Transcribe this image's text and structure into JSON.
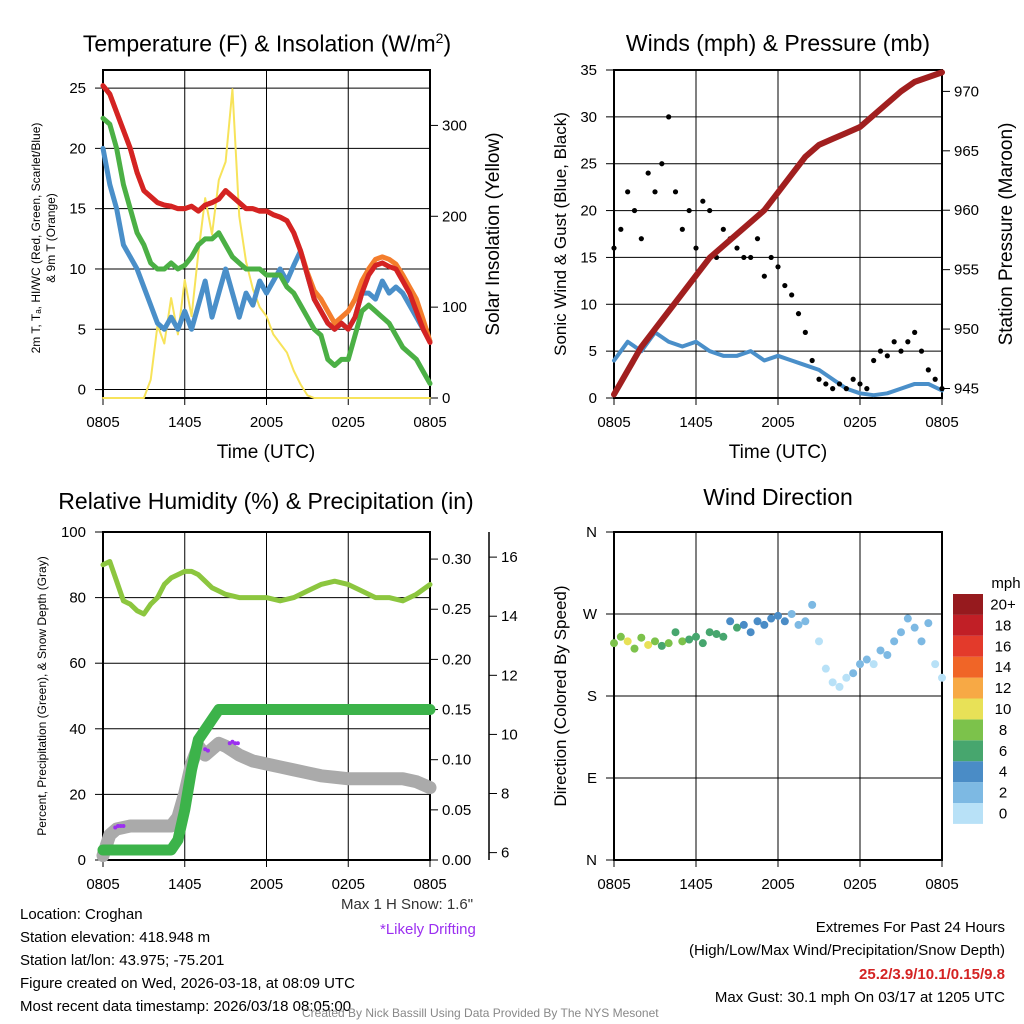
{
  "x_tick_labels": [
    "0805",
    "1405",
    "2005",
    "0205",
    "0805"
  ],
  "colors": {
    "temp": "#d42323",
    "temp9m": "#f47d2c",
    "dewpoint": "#4bb045",
    "windchill": "#4a8fc9",
    "solar": "#f7e35a",
    "pressure": "#a11f1f",
    "gust": "#000000",
    "wind": "#4a8fc9",
    "rh": "#8cc63f",
    "precip": "#3cb34a",
    "snow": "#aaaaaa",
    "drift": "#9b2ff0",
    "extremes": "#d42323",
    "credit": "#888888"
  },
  "chart_data": [
    {
      "type": "line",
      "title_main": "Temperature (F) & Insolation (W/m",
      "title_sup": "2",
      "title_end": ")",
      "xlabel": "Time (UTC)",
      "ylabel_line1": "2m T, Tₐ, HI/WC (Red, Green, Scarlet/Blue)",
      "ylabel_line2": "& 9m T (Orange)",
      "ylabel_right": "Solar Insolation (Yellow)",
      "ylim": [
        -0.7,
        26.5
      ],
      "ylim_right": [
        0,
        361
      ],
      "yticks": [
        "0",
        "5",
        "10",
        "15",
        "20",
        "25"
      ],
      "yticks_right": [
        "0",
        "100",
        "200",
        "300"
      ],
      "x_hours": [
        0,
        0.5,
        1,
        1.5,
        2,
        2.5,
        3,
        3.5,
        4,
        4.5,
        5,
        5.5,
        6,
        6.5,
        7,
        7.5,
        8,
        8.5,
        9,
        9.5,
        10,
        10.5,
        11,
        11.5,
        12,
        12.5,
        13,
        13.5,
        14,
        14.5,
        15,
        15.5,
        16,
        16.5,
        17,
        17.5,
        18,
        18.5,
        19,
        19.5,
        20,
        20.5,
        21,
        21.5,
        22,
        22.5,
        23,
        23.5,
        24
      ],
      "series": [
        {
          "name": "9m T",
          "color_key": "temp9m",
          "values": [
            25.2,
            24.5,
            23,
            21.5,
            20,
            18,
            16.5,
            16,
            15.5,
            15.3,
            15.2,
            15,
            15,
            15.2,
            14.8,
            15.3,
            15.5,
            15.8,
            16.5,
            16,
            15.5,
            15,
            15,
            14.8,
            14.8,
            14.5,
            14.3,
            14,
            13,
            11.5,
            9.7,
            8.2,
            7.5,
            6.5,
            5.5,
            6,
            6.5,
            7.5,
            9,
            10,
            10.8,
            11,
            10.8,
            10.4,
            9.5,
            8.5,
            7.5,
            5.8,
            4
          ]
        },
        {
          "name": "2m T",
          "color_key": "temp",
          "values": [
            25.2,
            24.5,
            23,
            21.5,
            20,
            18,
            16.5,
            16,
            15.5,
            15.3,
            15.2,
            15,
            15,
            15.2,
            14.8,
            15.3,
            15.5,
            15.8,
            16.5,
            16,
            15.5,
            15,
            15,
            14.8,
            14.8,
            14.5,
            14.3,
            14,
            13,
            11.5,
            9.5,
            7.5,
            6.5,
            5.5,
            5,
            5.5,
            5,
            6,
            8,
            9.5,
            10.3,
            10.5,
            10.2,
            10,
            9,
            8,
            6.5,
            5,
            3.9
          ]
        },
        {
          "name": "Dewpoint",
          "color_key": "dewpoint",
          "values": [
            22.5,
            22,
            20,
            17,
            15,
            13,
            12,
            10.5,
            10,
            10,
            10.5,
            10,
            10.3,
            11,
            12,
            12.5,
            12.5,
            13,
            12,
            11,
            10.5,
            10,
            10,
            10,
            9.5,
            9.5,
            9.5,
            8.5,
            8,
            7,
            6,
            5,
            4.5,
            2.5,
            2,
            2.5,
            2.5,
            4.5,
            6.5,
            7,
            6.5,
            6,
            5.5,
            4.5,
            3.5,
            3,
            2.5,
            1.5,
            0.5
          ]
        },
        {
          "name": "Wind Chill",
          "color_key": "windchill",
          "values": [
            20,
            17,
            15,
            12,
            11,
            10,
            8.5,
            7,
            5.5,
            5,
            6,
            5,
            6.5,
            5,
            7,
            9,
            6,
            8,
            10,
            8,
            6,
            8,
            7,
            9,
            8,
            9,
            10,
            9,
            10.3,
            11.5,
            9.5,
            7.5,
            6.5,
            5.5,
            5,
            5.5,
            5,
            6,
            8,
            8,
            7.5,
            9,
            8,
            8.5,
            8,
            7,
            6,
            5,
            4
          ]
        },
        {
          "name": "Solar Insolation",
          "color_key": "solar",
          "axis": "right",
          "values": [
            0,
            0,
            0,
            0,
            0,
            0,
            0,
            20,
            80,
            60,
            110,
            70,
            130,
            90,
            160,
            220,
            180,
            240,
            260,
            340,
            200,
            150,
            120,
            100,
            90,
            70,
            60,
            50,
            30,
            15,
            3,
            0,
            0,
            0,
            0,
            0,
            0,
            0,
            0,
            0,
            0,
            0,
            0,
            0,
            0,
            0,
            0,
            0,
            0
          ]
        }
      ]
    },
    {
      "type": "line",
      "title": "Winds (mph) & Pressure (mb)",
      "xlabel": "Time (UTC)",
      "ylabel": "Sonic Wind & Gust (Blue, Black)",
      "ylabel_right": "Station Pressure (Maroon)",
      "ylim": [
        0,
        35
      ],
      "ylim_right": [
        944.2,
        971.8
      ],
      "yticks": [
        "0",
        "5",
        "10",
        "15",
        "20",
        "25",
        "30",
        "35"
      ],
      "yticks_right": [
        "945",
        "950",
        "955",
        "960",
        "965",
        "970"
      ],
      "x_hours": [
        0,
        1,
        2,
        3,
        4,
        5,
        6,
        7,
        8,
        9,
        10,
        11,
        12,
        13,
        14,
        15,
        16,
        17,
        18,
        19,
        20,
        21,
        22,
        23,
        24
      ],
      "series": [
        {
          "name": "Station Pressure",
          "color_key": "pressure",
          "axis": "right",
          "values": [
            944.5,
            946.5,
            948.5,
            950,
            951.5,
            953,
            954.5,
            956,
            957,
            958,
            959,
            960,
            961.5,
            963,
            964.5,
            965.5,
            966,
            966.5,
            967,
            968,
            969,
            970,
            970.8,
            971.2,
            971.6
          ]
        },
        {
          "name": "Sonic Wind",
          "color_key": "wind",
          "values": [
            4,
            6,
            5,
            7,
            6,
            5.5,
            6,
            5,
            4.5,
            4.5,
            5,
            4,
            4.5,
            4,
            3.5,
            3,
            2,
            1,
            0.5,
            0.3,
            0.5,
            1,
            1.5,
            1.5,
            0.8
          ]
        }
      ],
      "gust": {
        "x_hours": [
          0,
          0.5,
          1,
          1.5,
          2,
          2.5,
          3,
          3.5,
          4,
          4.5,
          5,
          5.5,
          6,
          6.5,
          7,
          7.5,
          8,
          8.5,
          9,
          9.5,
          10,
          10.5,
          11,
          11.5,
          12,
          12.5,
          13,
          13.5,
          14,
          14.5,
          15,
          15.5,
          16,
          16.5,
          17,
          17.5,
          18,
          18.5,
          19,
          19.5,
          20,
          20.5,
          21,
          21.5,
          22,
          22.5,
          23,
          23.5,
          24
        ],
        "values": [
          16,
          18,
          22,
          20,
          17,
          24,
          22,
          25,
          30,
          22,
          18,
          20,
          16,
          21,
          20,
          15,
          18,
          17,
          16,
          15,
          15,
          17,
          13,
          15,
          14,
          12,
          11,
          9,
          7,
          4,
          2,
          1.5,
          1,
          1.5,
          1,
          2,
          1.5,
          1,
          4,
          5,
          4.5,
          6,
          5,
          6,
          7,
          5,
          3,
          2,
          1
        ]
      }
    },
    {
      "type": "line",
      "title": "Relative Humidity (%) & Precipitation (in)",
      "ylabel": "Percent, Precipitation (Green), & Snow Depth (Gray)",
      "ylim": [
        0,
        100
      ],
      "ylim_precip": [
        0,
        0.327
      ],
      "ylim_snow": [
        5.75,
        16.85
      ],
      "yticks": [
        "0",
        "20",
        "40",
        "60",
        "80",
        "100"
      ],
      "yticks_precip": [
        "0.00",
        "0.05",
        "0.10",
        "0.15",
        "0.20",
        "0.25",
        "0.30"
      ],
      "yticks_snow": [
        "6",
        "8",
        "10",
        "12",
        "14",
        "16"
      ],
      "x_hours": [
        0,
        0.5,
        1,
        1.5,
        2,
        2.5,
        3,
        3.5,
        4,
        4.5,
        5,
        5.5,
        6,
        6.5,
        7,
        7.5,
        8,
        8.5,
        9,
        10,
        11,
        12,
        13,
        14,
        15,
        16,
        17,
        18,
        19,
        20,
        21,
        22,
        23,
        24
      ],
      "series": [
        {
          "name": "Relative Humidity",
          "color_key": "rh",
          "values": [
            90,
            91,
            85,
            79,
            78,
            76,
            75,
            78,
            80,
            84,
            86,
            87,
            88,
            88,
            87,
            85,
            83,
            82,
            81,
            80,
            80,
            80,
            79,
            80,
            82,
            84,
            85,
            84,
            82,
            80,
            80,
            79,
            81,
            84
          ]
        },
        {
          "name": "Snow Depth",
          "color_key": "snow",
          "axis": "snow",
          "values": [
            5.9,
            6.6,
            6.8,
            6.85,
            6.9,
            6.9,
            6.9,
            6.9,
            6.9,
            6.9,
            6.9,
            7.2,
            8,
            9,
            9.6,
            9.3,
            9.5,
            9.7,
            9.6,
            9.3,
            9.1,
            9.0,
            8.9,
            8.8,
            8.7,
            8.6,
            8.55,
            8.5,
            8.5,
            8.5,
            8.5,
            8.5,
            8.4,
            8.2
          ]
        },
        {
          "name": "Precipitation",
          "color_key": "precip",
          "axis": "precip",
          "values": [
            0.01,
            0.01,
            0.01,
            0.01,
            0.01,
            0.01,
            0.01,
            0.01,
            0.01,
            0.01,
            0.01,
            0.02,
            0.05,
            0.09,
            0.12,
            0.13,
            0.14,
            0.15,
            0.15,
            0.15,
            0.15,
            0.15,
            0.15,
            0.15,
            0.15,
            0.15,
            0.15,
            0.15,
            0.15,
            0.15,
            0.15,
            0.15,
            0.15,
            0.15
          ]
        }
      ],
      "drifting_hours": [
        0.9,
        1.1,
        1.3,
        1.5,
        7.5,
        7.7,
        9.3,
        9.5,
        9.7,
        9.9
      ],
      "drifting_snow": [
        6.85,
        6.9,
        6.9,
        6.9,
        9.5,
        9.45,
        9.7,
        9.75,
        9.7,
        9.7
      ]
    },
    {
      "type": "scatter",
      "title": "Wind Direction",
      "ylabel": "Direction (Colored By Speed)",
      "ylim": [
        0,
        360
      ],
      "yticks": [
        "N",
        "E",
        "S",
        "W",
        "N"
      ],
      "colorbar_title": "mph",
      "colorbar_labels": [
        "0",
        "2",
        "4",
        "6",
        "8",
        "10",
        "12",
        "14",
        "16",
        "18",
        "20+"
      ],
      "colorbar_colors": [
        "#b8e1f7",
        "#7db9e3",
        "#4a8cc6",
        "#47a66e",
        "#7cc24b",
        "#e8e157",
        "#f7a945",
        "#f06527",
        "#e33a2b",
        "#c11f26",
        "#961a1e"
      ],
      "x_hours": [
        0,
        0.5,
        1,
        1.5,
        2,
        2.5,
        3,
        3.5,
        4,
        4.5,
        5,
        5.5,
        6,
        6.5,
        7,
        7.5,
        8,
        8.5,
        9,
        9.5,
        10,
        10.5,
        11,
        11.5,
        12,
        12.5,
        13,
        13.5,
        14,
        14.5,
        15,
        15.5,
        16,
        16.5,
        17,
        17.5,
        18,
        18.5,
        19,
        19.5,
        20,
        20.5,
        21,
        21.5,
        22,
        22.5,
        23,
        23.5,
        24
      ],
      "direction_deg": [
        238,
        245,
        240,
        232,
        244,
        236,
        240,
        235,
        238,
        250,
        240,
        242,
        245,
        238,
        250,
        248,
        245,
        262,
        255,
        258,
        250,
        262,
        258,
        265,
        268,
        262,
        270,
        258,
        262,
        280,
        240,
        210,
        195,
        190,
        200,
        205,
        215,
        220,
        215,
        230,
        225,
        240,
        250,
        265,
        255,
        240,
        260,
        215,
        200
      ],
      "speed_mph": [
        7,
        8,
        9,
        8,
        7,
        9,
        8,
        6,
        7,
        6,
        7,
        6,
        6,
        5,
        5,
        6,
        5,
        4,
        5,
        4,
        4,
        3,
        4,
        4,
        3,
        4,
        2,
        2,
        1,
        1,
        0.5,
        0.5,
        0.3,
        0.3,
        0.5,
        1,
        1,
        1,
        0.5,
        1,
        1,
        1,
        1.5,
        2,
        1.5,
        1,
        1,
        0.5,
        0.5
      ]
    }
  ],
  "snow_note": "Max 1 H Snow: 1.6\"",
  "drift_note": "*Likely Drifting",
  "info": {
    "location": "Location: Croghan",
    "elevation": "Station elevation: 418.948 m",
    "latlon": "Station lat/lon: 43.975; -75.201",
    "created": "Figure created on Wed, 2026-03-18, at 08:09 UTC",
    "recent": "Most recent data timestamp: 2026/03/18 08:05:00"
  },
  "extremes": {
    "title": "Extremes For Past 24 Hours",
    "subtitle": "(High/Low/Max Wind/Precipitation/Snow Depth)",
    "values": "25.2/3.9/10.1/0.15/9.8",
    "gust": "Max Gust: 30.1 mph On 03/17 at 1205 UTC"
  },
  "credit": "Created By Nick Bassill Using Data Provided By The NYS Mesonet"
}
